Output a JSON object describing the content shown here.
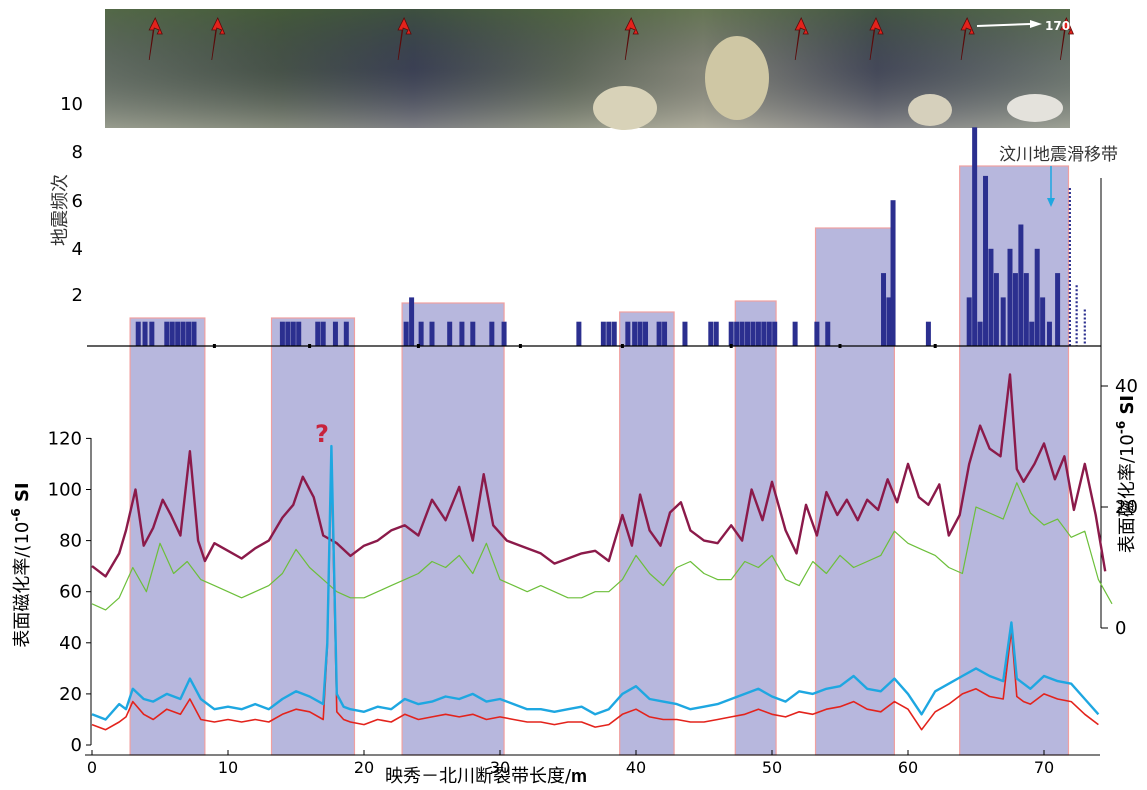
{
  "chart_data": [
    {
      "type": "bar",
      "panel": "earthquake-frequency",
      "ylabel": "地震频次",
      "y_ticks": [
        "2",
        "4",
        "6",
        "8",
        "10"
      ],
      "ylim": [
        0,
        12
      ],
      "annotation": "汶川地震滑移带",
      "photo_direction_label": "170°",
      "photo_arrow_positions_m": [
        4.5,
        9.1,
        22.8,
        39.5,
        52.0,
        57.5,
        64.2,
        71.5
      ],
      "bars": [
        {
          "x": 3.4,
          "y": 1
        },
        {
          "x": 3.9,
          "y": 1
        },
        {
          "x": 4.4,
          "y": 1
        },
        {
          "x": 5.5,
          "y": 1
        },
        {
          "x": 5.9,
          "y": 1
        },
        {
          "x": 6.3,
          "y": 1
        },
        {
          "x": 6.7,
          "y": 1
        },
        {
          "x": 7.1,
          "y": 1
        },
        {
          "x": 7.5,
          "y": 1
        },
        {
          "x": 14.0,
          "y": 1
        },
        {
          "x": 14.4,
          "y": 1
        },
        {
          "x": 14.8,
          "y": 1
        },
        {
          "x": 15.2,
          "y": 1
        },
        {
          "x": 16.6,
          "y": 1
        },
        {
          "x": 17.0,
          "y": 1
        },
        {
          "x": 17.9,
          "y": 1
        },
        {
          "x": 18.7,
          "y": 1
        },
        {
          "x": 23.1,
          "y": 1
        },
        {
          "x": 23.5,
          "y": 2
        },
        {
          "x": 24.2,
          "y": 1
        },
        {
          "x": 25.0,
          "y": 1
        },
        {
          "x": 26.3,
          "y": 1
        },
        {
          "x": 27.2,
          "y": 1
        },
        {
          "x": 28.0,
          "y": 1
        },
        {
          "x": 29.4,
          "y": 1
        },
        {
          "x": 30.3,
          "y": 1
        },
        {
          "x": 35.8,
          "y": 1
        },
        {
          "x": 37.6,
          "y": 1
        },
        {
          "x": 38.0,
          "y": 1
        },
        {
          "x": 38.4,
          "y": 1
        },
        {
          "x": 39.4,
          "y": 1
        },
        {
          "x": 39.9,
          "y": 1
        },
        {
          "x": 40.3,
          "y": 1
        },
        {
          "x": 40.7,
          "y": 1
        },
        {
          "x": 41.7,
          "y": 1
        },
        {
          "x": 42.1,
          "y": 1
        },
        {
          "x": 43.6,
          "y": 1
        },
        {
          "x": 45.5,
          "y": 1
        },
        {
          "x": 45.9,
          "y": 1
        },
        {
          "x": 47.0,
          "y": 1
        },
        {
          "x": 47.4,
          "y": 1
        },
        {
          "x": 47.8,
          "y": 1
        },
        {
          "x": 48.2,
          "y": 1
        },
        {
          "x": 48.6,
          "y": 1
        },
        {
          "x": 49.0,
          "y": 1
        },
        {
          "x": 49.4,
          "y": 1
        },
        {
          "x": 49.8,
          "y": 1
        },
        {
          "x": 50.2,
          "y": 1
        },
        {
          "x": 51.7,
          "y": 1
        },
        {
          "x": 53.3,
          "y": 1
        },
        {
          "x": 54.1,
          "y": 1
        },
        {
          "x": 58.2,
          "y": 3
        },
        {
          "x": 58.6,
          "y": 2
        },
        {
          "x": 58.9,
          "y": 6
        },
        {
          "x": 61.5,
          "y": 1
        },
        {
          "x": 64.5,
          "y": 2
        },
        {
          "x": 64.9,
          "y": 9
        },
        {
          "x": 65.3,
          "y": 1
        },
        {
          "x": 65.7,
          "y": 7
        },
        {
          "x": 66.1,
          "y": 4
        },
        {
          "x": 66.5,
          "y": 3
        },
        {
          "x": 67.0,
          "y": 2
        },
        {
          "x": 67.5,
          "y": 4
        },
        {
          "x": 67.9,
          "y": 3
        },
        {
          "x": 68.3,
          "y": 5
        },
        {
          "x": 68.7,
          "y": 3
        },
        {
          "x": 69.1,
          "y": 1
        },
        {
          "x": 69.5,
          "y": 4
        },
        {
          "x": 69.9,
          "y": 2
        },
        {
          "x": 70.4,
          "y": 1
        },
        {
          "x": 71.0,
          "y": 3
        }
      ],
      "dotted_bars": [
        {
          "x": 71.9,
          "y": 6.5
        },
        {
          "x": 72.4,
          "y": 2.5
        },
        {
          "x": 73.0,
          "y": 1.5
        }
      ],
      "shaded_zones_m": [
        [
          2.8,
          8.3
        ],
        [
          13.2,
          19.3
        ],
        [
          22.8,
          30.3
        ],
        [
          38.8,
          42.8
        ],
        [
          47.3,
          50.3
        ],
        [
          53.2,
          59.0
        ],
        [
          63.8,
          71.8
        ]
      ]
    },
    {
      "type": "line",
      "panel": "surface-magnetic-susceptibility",
      "xlabel": "映秀－北川断裂带长度/",
      "xlabel_unit": "m",
      "x_ticks": [
        "0",
        "10",
        "20",
        "30",
        "40",
        "50",
        "60",
        "70"
      ],
      "xlim": [
        0,
        75
      ],
      "ylabel_left": "表面磁化率/(10",
      "ylabel_left_sup": "-6",
      "ylabel_left_unit": " SI",
      "y_left_ticks": [
        "0",
        "20",
        "40",
        "60",
        "80",
        "100",
        "120"
      ],
      "ylim_left": [
        0,
        120
      ],
      "ylabel_right": "表面磁化率/10",
      "ylabel_right_sup": "-6",
      "ylabel_right_unit": " SI",
      "y_right_ticks": [
        "0",
        "20",
        "40"
      ],
      "ylim_right": [
        0,
        40
      ],
      "question_mark": "?",
      "colors": {
        "dark_red": "#8b1a4a",
        "green": "#6cbf3a",
        "blue": "#1ea7e1",
        "red": "#e3231c",
        "zone": "#9b9bd0",
        "zone_edge": "#f0a0a0",
        "bar": "#2b2f8f"
      },
      "series": [
        {
          "color": "dark_red",
          "axis": "left",
          "x": [
            0,
            1,
            2,
            2.5,
            3.2,
            3.8,
            4.5,
            5.2,
            5.8,
            6.5,
            7.2,
            7.8,
            8.3,
            9,
            10,
            11,
            12,
            13,
            14,
            14.8,
            15.5,
            16.3,
            17,
            18,
            19,
            20,
            21,
            22,
            23,
            24,
            25,
            26,
            27,
            28,
            28.8,
            29.5,
            30.5,
            31.5,
            33,
            34,
            35,
            36,
            37,
            38,
            39,
            39.7,
            40.3,
            41,
            41.8,
            42.5,
            43.3,
            44,
            45,
            46,
            47,
            47.8,
            48.5,
            49.3,
            50,
            51,
            51.8,
            52.5,
            53.3,
            54,
            54.8,
            55.5,
            56.3,
            57,
            57.8,
            58.5,
            59.2,
            60,
            60.8,
            61.5,
            62.3,
            63,
            63.8,
            64.5,
            65.3,
            66,
            66.8,
            67.5,
            68,
            68.5,
            69.3,
            70,
            70.8,
            71.5,
            72.2,
            73,
            73.8,
            74.5
          ],
          "y": [
            70,
            66,
            75,
            84,
            100,
            78,
            85,
            96,
            90,
            82,
            115,
            80,
            72,
            79,
            76,
            73,
            77,
            80,
            89,
            94,
            105,
            97,
            82,
            79,
            74,
            78,
            80,
            84,
            86,
            82,
            96,
            88,
            101,
            80,
            106,
            86,
            80,
            78,
            75,
            71,
            73,
            75,
            76,
            72,
            90,
            78,
            98,
            84,
            78,
            91,
            95,
            84,
            80,
            79,
            86,
            80,
            100,
            88,
            103,
            84,
            75,
            94,
            82,
            99,
            90,
            96,
            88,
            96,
            92,
            104,
            95,
            110,
            97,
            94,
            102,
            82,
            90,
            110,
            125,
            116,
            113,
            145,
            108,
            103,
            110,
            118,
            104,
            113,
            92,
            110,
            90,
            68
          ]
        },
        {
          "color": "green",
          "axis": "right",
          "x": [
            0,
            1,
            2,
            3,
            4,
            5,
            6,
            7,
            8,
            9,
            10,
            11,
            12,
            13,
            14,
            15,
            16,
            17,
            18,
            19,
            20,
            21,
            22,
            23,
            24,
            25,
            26,
            27,
            28,
            29,
            30,
            31,
            32,
            33,
            34,
            35,
            36,
            37,
            38,
            39,
            40,
            41,
            42,
            43,
            44,
            45,
            46,
            47,
            48,
            49,
            50,
            51,
            52,
            53,
            54,
            55,
            56,
            57,
            58,
            59,
            60,
            61,
            62,
            63,
            64,
            65,
            66,
            67,
            68,
            69,
            70,
            71,
            72,
            73,
            74,
            75
          ],
          "y": [
            4,
            3,
            5,
            10,
            6,
            14,
            9,
            11,
            8,
            7,
            6,
            5,
            6,
            7,
            9,
            13,
            10,
            8,
            6,
            5,
            5,
            6,
            7,
            8,
            9,
            11,
            10,
            12,
            9,
            14,
            8,
            7,
            6,
            7,
            6,
            5,
            5,
            6,
            6,
            8,
            12,
            9,
            7,
            10,
            11,
            9,
            8,
            8,
            11,
            10,
            12,
            8,
            7,
            11,
            9,
            12,
            10,
            11,
            12,
            16,
            14,
            13,
            12,
            10,
            9,
            20,
            19,
            18,
            24,
            19,
            17,
            18,
            15,
            16,
            8,
            4
          ]
        },
        {
          "color": "blue",
          "axis": "left",
          "x": [
            0,
            1,
            2,
            2.5,
            3,
            3.8,
            4.5,
            5.5,
            6.5,
            7.2,
            8,
            9,
            10,
            11,
            12,
            13,
            14,
            15,
            16,
            17,
            17.3,
            17.6,
            18,
            18.5,
            19,
            20,
            21,
            22,
            23,
            24,
            25,
            26,
            27,
            28,
            29,
            30,
            31,
            32,
            33,
            34,
            35,
            36,
            37,
            38,
            39,
            40,
            41,
            42,
            43,
            44,
            45,
            46,
            47,
            48,
            49,
            50,
            51,
            52,
            53,
            54,
            55,
            56,
            57,
            58,
            59,
            60,
            61,
            62,
            63,
            64,
            65,
            66,
            67,
            67.6,
            68,
            68.5,
            69,
            70,
            71,
            72,
            73,
            74
          ],
          "y": [
            12,
            10,
            16,
            14,
            22,
            18,
            17,
            20,
            18,
            26,
            18,
            14,
            15,
            14,
            16,
            14,
            18,
            21,
            19,
            16,
            40,
            117,
            20,
            15,
            14,
            13,
            15,
            14,
            18,
            16,
            17,
            19,
            18,
            20,
            17,
            18,
            16,
            14,
            14,
            13,
            14,
            15,
            12,
            14,
            20,
            23,
            18,
            17,
            16,
            14,
            15,
            16,
            18,
            20,
            22,
            19,
            17,
            21,
            20,
            22,
            23,
            27,
            22,
            21,
            26,
            20,
            12,
            21,
            24,
            27,
            30,
            27,
            25,
            48,
            26,
            24,
            22,
            27,
            25,
            24,
            18,
            12
          ]
        },
        {
          "color": "red",
          "axis": "left",
          "x": [
            0,
            1,
            2,
            2.5,
            3,
            3.8,
            4.5,
            5.5,
            6.5,
            7.2,
            8,
            9,
            10,
            11,
            12,
            13,
            14,
            15,
            16,
            17,
            17.3,
            17.6,
            18,
            18.5,
            19,
            20,
            21,
            22,
            23,
            24,
            25,
            26,
            27,
            28,
            29,
            30,
            31,
            32,
            33,
            34,
            35,
            36,
            37,
            38,
            39,
            40,
            41,
            42,
            43,
            44,
            45,
            46,
            47,
            48,
            49,
            50,
            51,
            52,
            53,
            54,
            55,
            56,
            57,
            58,
            59,
            60,
            61,
            62,
            63,
            64,
            65,
            66,
            67,
            67.6,
            68,
            68.5,
            69,
            70,
            71,
            72,
            73,
            74
          ],
          "y": [
            8,
            6,
            9,
            11,
            17,
            12,
            10,
            14,
            12,
            18,
            10,
            9,
            10,
            9,
            10,
            9,
            12,
            14,
            13,
            10,
            38,
            110,
            13,
            10,
            9,
            8,
            10,
            9,
            12,
            10,
            11,
            12,
            11,
            12,
            10,
            11,
            10,
            9,
            9,
            8,
            9,
            9,
            7,
            8,
            12,
            14,
            11,
            10,
            10,
            9,
            9,
            10,
            11,
            12,
            14,
            12,
            11,
            13,
            12,
            14,
            15,
            17,
            14,
            13,
            17,
            14,
            6,
            13,
            16,
            20,
            22,
            19,
            18,
            45,
            19,
            17,
            16,
            20,
            18,
            17,
            12,
            8
          ]
        }
      ]
    }
  ]
}
